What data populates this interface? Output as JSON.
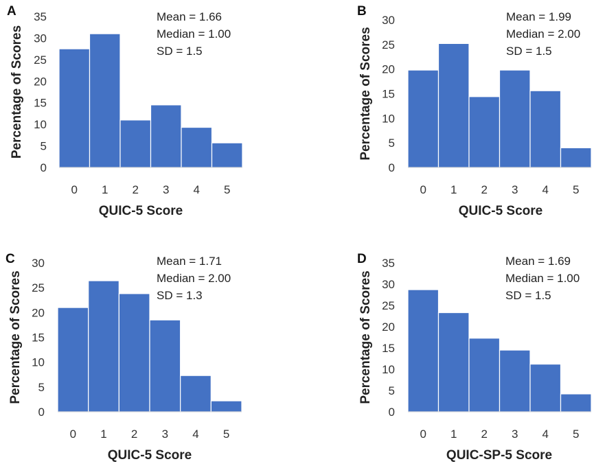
{
  "chart_data": [
    {
      "type": "bar",
      "panel": "A",
      "categories": [
        "0",
        "1",
        "2",
        "3",
        "4",
        "5"
      ],
      "values": [
        27.5,
        31,
        11,
        14.5,
        9.3,
        5.7
      ],
      "xlabel": "QUIC-5 Score",
      "ylabel": "Percentage of Scores",
      "ylim": [
        0,
        35
      ],
      "yticks": [
        "0",
        "5",
        "10",
        "15",
        "20",
        "25",
        "30",
        "35"
      ],
      "stats": [
        "Mean = 1.66",
        "Median = 1.00",
        "SD = 1.5"
      ]
    },
    {
      "type": "bar",
      "panel": "B",
      "categories": [
        "0",
        "1",
        "2",
        "3",
        "4",
        "5"
      ],
      "values": [
        19.8,
        25.2,
        14.4,
        19.8,
        15.6,
        4
      ],
      "xlabel": "QUIC-5 Score",
      "ylabel": "Percentage of Scores",
      "ylim": [
        0,
        30
      ],
      "yticks": [
        "0",
        "5",
        "10",
        "15",
        "20",
        "25",
        "30"
      ],
      "stats": [
        "Mean = 1.99",
        "Median = 2.00",
        "SD = 1.5"
      ]
    },
    {
      "type": "bar",
      "panel": "C",
      "categories": [
        "0",
        "1",
        "2",
        "3",
        "4",
        "5"
      ],
      "values": [
        21,
        26.4,
        23.8,
        18.5,
        7.3,
        2.2
      ],
      "xlabel": "QUIC-5 Score",
      "ylabel": "Percentage of Scores",
      "ylim": [
        0,
        30
      ],
      "yticks": [
        "0",
        "5",
        "10",
        "15",
        "20",
        "25",
        "30"
      ],
      "stats": [
        "Mean = 1.71",
        "Median = 2.00",
        "SD = 1.3"
      ]
    },
    {
      "type": "bar",
      "panel": "D",
      "categories": [
        "0",
        "1",
        "2",
        "3",
        "4",
        "5"
      ],
      "values": [
        28.7,
        23.3,
        17.3,
        14.5,
        11.2,
        4.2
      ],
      "xlabel": "QUIC-SP-5 Score",
      "ylabel": "Percentage of Scores",
      "ylim": [
        0,
        35
      ],
      "yticks": [
        "0",
        "5",
        "10",
        "15",
        "20",
        "25",
        "30",
        "35"
      ],
      "stats": [
        "Mean = 1.69",
        "Median = 1.00",
        "SD = 1.5"
      ]
    }
  ]
}
